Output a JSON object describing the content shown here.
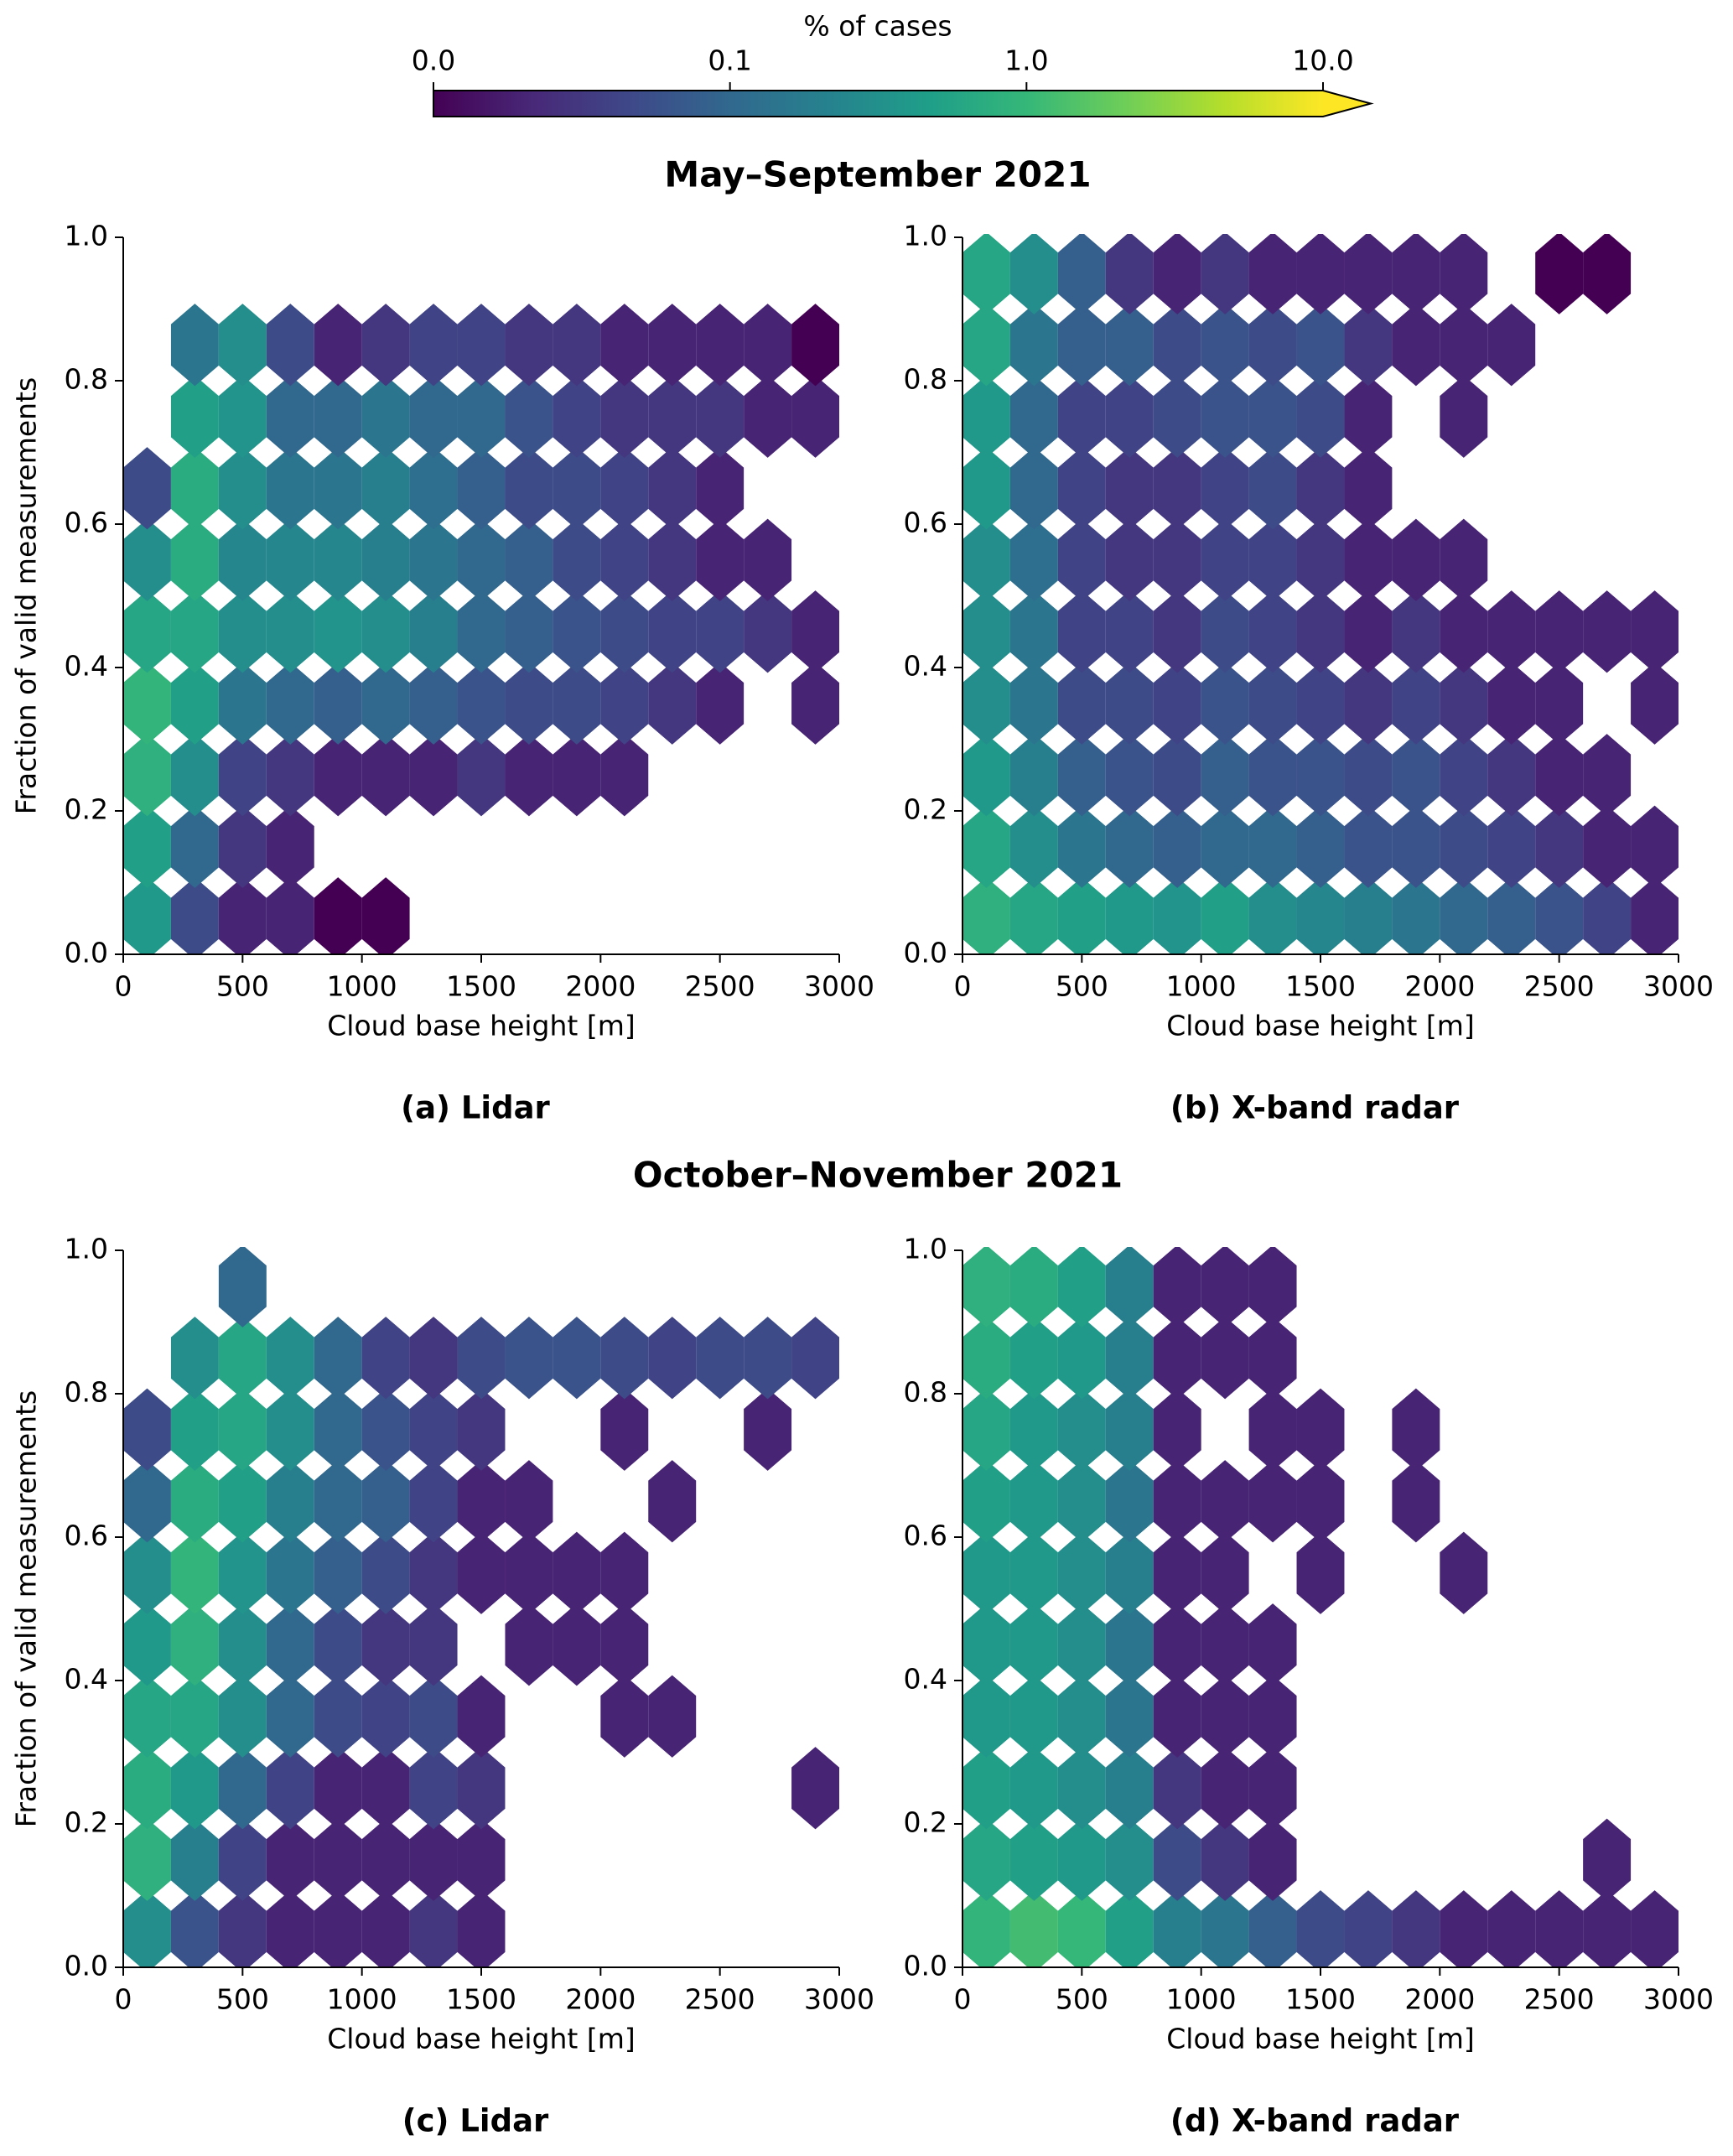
{
  "figure": {
    "colorbar": {
      "label": "% of cases",
      "scale": "log",
      "lim": [
        0.01,
        10
      ],
      "ticks": [
        {
          "value": 0.01,
          "label": "0.0"
        },
        0.1,
        {
          "value": 1,
          "label": "1.0"
        },
        {
          "value": 10,
          "label": "10.0"
        }
      ],
      "colors": [
        "#440154",
        "#482878",
        "#3e4989",
        "#31688e",
        "#26828e",
        "#1f9e89",
        "#35b779",
        "#6ece58",
        "#b5de2b",
        "#fde725"
      ]
    },
    "section_titles": [
      "May–September 2021",
      "October–November 2021"
    ]
  },
  "chart_data": [
    {
      "type": "hexbin",
      "title": "(a) Lidar",
      "x_label": "Cloud base height [m]",
      "y_label": "Fraction of valid measurements",
      "xlim": [
        0,
        3000
      ],
      "ylim": [
        0,
        1
      ],
      "xticks": [
        0,
        500,
        1000,
        1500,
        2000,
        2500,
        3000
      ],
      "yticks": [
        {
          "value": 0,
          "label": "0.0"
        },
        0.2,
        0.4,
        0.6,
        0.8,
        {
          "value": 1,
          "label": "1.0"
        }
      ],
      "x": [
        100,
        300,
        500,
        700,
        900,
        1100,
        1300,
        1500,
        1700,
        1900,
        2100,
        2300,
        2500,
        2700,
        2900
      ],
      "y": [
        0.05,
        0.15,
        0.25,
        0.35,
        0.45,
        0.55,
        0.65,
        0.75,
        0.85,
        0.95
      ],
      "values": [
        [
          0.4,
          0.05,
          0.02,
          0.02,
          0.01,
          0.01,
          null,
          null,
          null,
          null,
          null,
          null,
          null,
          null,
          null
        ],
        [
          0.5,
          0.1,
          0.03,
          0.02,
          null,
          null,
          null,
          null,
          null,
          null,
          null,
          null,
          null,
          null,
          null
        ],
        [
          0.8,
          0.3,
          0.04,
          0.03,
          0.02,
          0.02,
          0.02,
          0.03,
          0.02,
          0.02,
          0.02,
          null,
          null,
          null,
          null
        ],
        [
          0.9,
          0.5,
          0.15,
          0.1,
          0.08,
          0.1,
          0.08,
          0.06,
          0.05,
          0.05,
          0.04,
          0.03,
          0.02,
          null,
          0.02
        ],
        [
          0.6,
          0.6,
          0.3,
          0.3,
          0.35,
          0.3,
          0.2,
          0.1,
          0.08,
          0.06,
          0.05,
          0.04,
          0.04,
          0.03,
          0.02
        ],
        [
          0.3,
          0.7,
          0.25,
          0.25,
          0.25,
          0.2,
          0.15,
          0.1,
          0.08,
          0.05,
          0.04,
          0.03,
          0.02,
          0.02,
          null
        ],
        [
          0.05,
          0.7,
          0.3,
          0.15,
          0.15,
          0.2,
          0.12,
          0.08,
          0.05,
          0.05,
          0.04,
          0.03,
          0.02,
          null,
          null
        ],
        [
          null,
          0.5,
          0.35,
          0.1,
          0.1,
          0.15,
          0.1,
          0.1,
          0.06,
          0.04,
          0.03,
          0.03,
          0.03,
          0.02,
          0.02
        ],
        [
          null,
          0.15,
          0.3,
          0.05,
          0.02,
          0.03,
          0.04,
          0.04,
          0.03,
          0.03,
          0.02,
          0.02,
          0.02,
          0.02,
          0.01
        ],
        [
          null,
          null,
          null,
          null,
          null,
          null,
          null,
          null,
          null,
          null,
          null,
          null,
          null,
          null,
          null
        ]
      ]
    },
    {
      "type": "hexbin",
      "title": "(b) X-band radar",
      "x_label": "Cloud base height [m]",
      "xlim": [
        0,
        3000
      ],
      "ylim": [
        0,
        1
      ],
      "xticks": [
        0,
        500,
        1000,
        1500,
        2000,
        2500,
        3000
      ],
      "yticks": [
        {
          "value": 0,
          "label": "0.0"
        },
        0.2,
        0.4,
        0.6,
        0.8,
        {
          "value": 1,
          "label": "1.0"
        }
      ],
      "x": [
        100,
        300,
        500,
        700,
        900,
        1100,
        1300,
        1500,
        1700,
        1900,
        2100,
        2300,
        2500,
        2700,
        2900
      ],
      "y": [
        0.05,
        0.15,
        0.25,
        0.35,
        0.45,
        0.55,
        0.65,
        0.75,
        0.85,
        0.95
      ],
      "values": [
        [
          0.8,
          0.6,
          0.5,
          0.4,
          0.35,
          0.5,
          0.3,
          0.25,
          0.2,
          0.15,
          0.1,
          0.08,
          0.06,
          0.04,
          0.02
        ],
        [
          0.6,
          0.3,
          0.15,
          0.1,
          0.08,
          0.1,
          0.1,
          0.08,
          0.06,
          0.06,
          0.05,
          0.04,
          0.03,
          0.02,
          0.02
        ],
        [
          0.4,
          0.2,
          0.08,
          0.06,
          0.05,
          0.08,
          0.06,
          0.06,
          0.05,
          0.06,
          0.04,
          0.03,
          0.02,
          0.02,
          null
        ],
        [
          0.3,
          0.15,
          0.05,
          0.05,
          0.04,
          0.06,
          0.05,
          0.04,
          0.03,
          0.04,
          0.03,
          0.02,
          0.02,
          null,
          0.02
        ],
        [
          0.3,
          0.15,
          0.04,
          0.04,
          0.03,
          0.05,
          0.04,
          0.03,
          0.02,
          0.03,
          0.02,
          0.02,
          0.02,
          0.02,
          0.02
        ],
        [
          0.3,
          0.12,
          0.04,
          0.03,
          0.03,
          0.04,
          0.04,
          0.03,
          0.02,
          0.02,
          0.02,
          null,
          null,
          null,
          null
        ],
        [
          0.4,
          0.1,
          0.04,
          0.03,
          0.03,
          0.04,
          0.05,
          0.03,
          0.02,
          null,
          null,
          null,
          null,
          null,
          null
        ],
        [
          0.4,
          0.1,
          0.04,
          0.04,
          0.05,
          0.06,
          0.06,
          0.05,
          0.02,
          null,
          0.02,
          null,
          null,
          null,
          null
        ],
        [
          0.6,
          0.15,
          0.08,
          0.08,
          0.05,
          0.06,
          0.05,
          0.06,
          0.03,
          0.02,
          0.02,
          0.02,
          null,
          null,
          null
        ],
        [
          0.6,
          0.3,
          0.08,
          0.03,
          0.02,
          0.03,
          0.02,
          0.02,
          0.02,
          0.02,
          0.02,
          null,
          0.01,
          0.01,
          null
        ]
      ]
    },
    {
      "type": "hexbin",
      "title": "(c) Lidar",
      "x_label": "Cloud base height [m]",
      "y_label": "Fraction of valid measurements",
      "xlim": [
        0,
        3000
      ],
      "ylim": [
        0,
        1
      ],
      "xticks": [
        0,
        500,
        1000,
        1500,
        2000,
        2500,
        3000
      ],
      "yticks": [
        {
          "value": 0,
          "label": "0.0"
        },
        0.2,
        0.4,
        0.6,
        0.8,
        {
          "value": 1,
          "label": "1.0"
        }
      ],
      "x": [
        100,
        300,
        500,
        700,
        900,
        1100,
        1300,
        1500,
        1700,
        1900,
        2100,
        2300,
        2500,
        2700,
        2900
      ],
      "y": [
        0.05,
        0.15,
        0.25,
        0.35,
        0.45,
        0.55,
        0.65,
        0.75,
        0.85,
        0.95
      ],
      "values": [
        [
          0.3,
          0.06,
          0.03,
          0.02,
          0.02,
          0.02,
          0.03,
          0.02,
          null,
          null,
          null,
          null,
          null,
          null,
          null
        ],
        [
          0.8,
          0.2,
          0.04,
          0.02,
          0.02,
          0.02,
          0.02,
          0.02,
          null,
          null,
          null,
          null,
          null,
          null,
          null
        ],
        [
          0.7,
          0.4,
          0.1,
          0.04,
          0.02,
          0.02,
          0.04,
          0.03,
          null,
          null,
          null,
          null,
          null,
          null,
          0.02
        ],
        [
          0.6,
          0.6,
          0.3,
          0.1,
          0.05,
          0.04,
          0.05,
          0.02,
          null,
          null,
          0.02,
          0.02,
          null,
          null,
          null
        ],
        [
          0.4,
          0.8,
          0.3,
          0.1,
          0.05,
          0.03,
          0.03,
          null,
          0.02,
          0.02,
          0.02,
          null,
          null,
          null,
          null
        ],
        [
          0.3,
          0.9,
          0.35,
          0.15,
          0.08,
          0.05,
          0.03,
          0.02,
          0.02,
          0.02,
          0.02,
          null,
          null,
          null,
          null
        ],
        [
          0.1,
          0.7,
          0.5,
          0.2,
          0.1,
          0.08,
          0.04,
          0.02,
          0.02,
          null,
          null,
          0.02,
          null,
          null,
          null
        ],
        [
          0.05,
          0.5,
          0.6,
          0.3,
          0.1,
          0.06,
          0.04,
          0.03,
          null,
          null,
          0.02,
          null,
          null,
          0.02,
          null
        ],
        [
          null,
          0.3,
          0.6,
          0.3,
          0.1,
          0.04,
          0.03,
          0.05,
          0.06,
          0.06,
          0.05,
          0.04,
          0.05,
          0.05,
          0.04
        ],
        [
          null,
          null,
          0.1,
          null,
          null,
          null,
          null,
          null,
          null,
          null,
          null,
          null,
          null,
          null,
          null
        ]
      ]
    },
    {
      "type": "hexbin",
      "title": "(d) X-band radar",
      "x_label": "Cloud base height [m]",
      "xlim": [
        0,
        3000
      ],
      "ylim": [
        0,
        1
      ],
      "xticks": [
        0,
        500,
        1000,
        1500,
        2000,
        2500,
        3000
      ],
      "yticks": [
        {
          "value": 0,
          "label": "0.0"
        },
        0.2,
        0.4,
        0.6,
        0.8,
        {
          "value": 1,
          "label": "1.0"
        }
      ],
      "x": [
        100,
        300,
        500,
        700,
        900,
        1100,
        1300,
        1500,
        1700,
        1900,
        2100,
        2300,
        2500,
        2700,
        2900
      ],
      "y": [
        0.05,
        0.15,
        0.25,
        0.35,
        0.45,
        0.55,
        0.65,
        0.75,
        0.85,
        0.95
      ],
      "values": [
        [
          0.9,
          1.2,
          1.0,
          0.5,
          0.2,
          0.15,
          0.08,
          0.05,
          0.04,
          0.03,
          0.02,
          0.02,
          0.02,
          0.02,
          0.02
        ],
        [
          0.6,
          0.5,
          0.4,
          0.3,
          0.05,
          0.03,
          0.02,
          null,
          null,
          null,
          null,
          null,
          null,
          0.02,
          null
        ],
        [
          0.5,
          0.4,
          0.3,
          0.2,
          0.03,
          0.02,
          0.02,
          null,
          null,
          null,
          null,
          null,
          null,
          null,
          null
        ],
        [
          0.4,
          0.4,
          0.3,
          0.15,
          0.02,
          0.02,
          0.02,
          null,
          null,
          null,
          null,
          null,
          null,
          null,
          null
        ],
        [
          0.4,
          0.4,
          0.3,
          0.15,
          0.02,
          0.02,
          0.02,
          null,
          null,
          null,
          null,
          null,
          null,
          null,
          null
        ],
        [
          0.4,
          0.4,
          0.3,
          0.2,
          0.02,
          0.02,
          null,
          0.02,
          null,
          null,
          0.02,
          null,
          null,
          null,
          null
        ],
        [
          0.5,
          0.4,
          0.3,
          0.15,
          0.02,
          0.02,
          0.02,
          0.02,
          null,
          0.02,
          null,
          null,
          null,
          null,
          null
        ],
        [
          0.6,
          0.4,
          0.3,
          0.2,
          0.02,
          null,
          0.02,
          0.02,
          null,
          0.02,
          null,
          null,
          null,
          null,
          null
        ],
        [
          0.7,
          0.5,
          0.4,
          0.2,
          0.02,
          0.02,
          0.02,
          null,
          null,
          null,
          null,
          null,
          null,
          null,
          null
        ],
        [
          0.8,
          0.7,
          0.5,
          0.2,
          0.02,
          0.02,
          0.02,
          null,
          null,
          null,
          null,
          null,
          null,
          null,
          null
        ]
      ]
    }
  ]
}
